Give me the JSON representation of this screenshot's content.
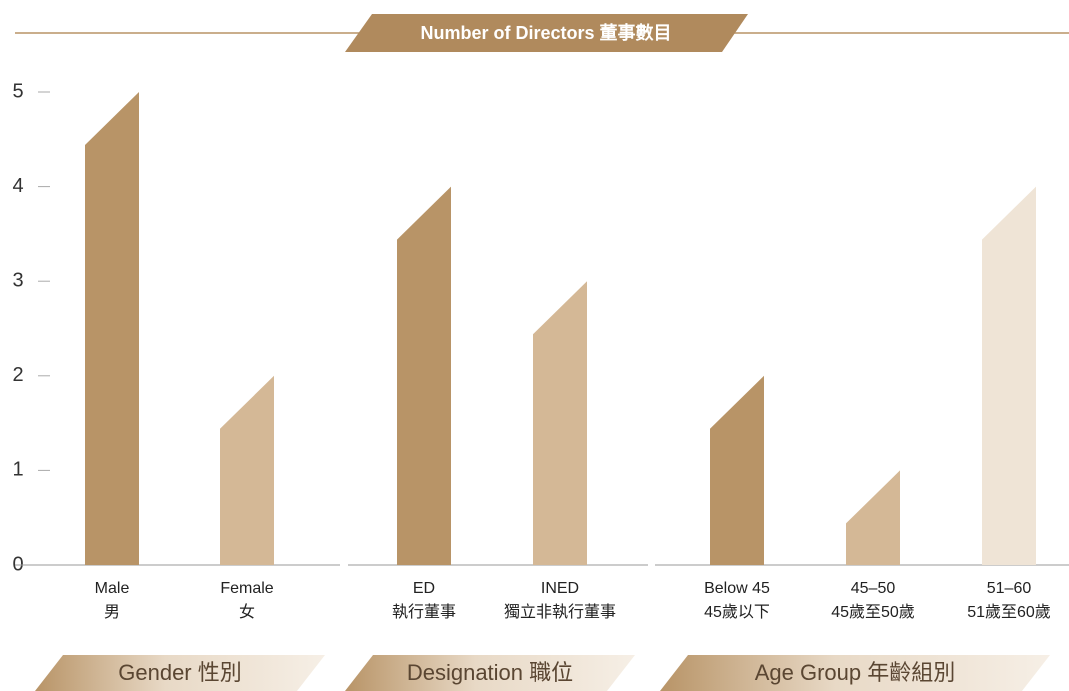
{
  "chart_data": {
    "type": "bar",
    "title": "Number of Directors 董事數目",
    "ylim": [
      0,
      5
    ],
    "yticks": [
      0,
      1,
      2,
      3,
      4,
      5
    ],
    "groups": [
      {
        "label": "Gender 性別",
        "categories": [
          [
            "Male",
            "男"
          ],
          [
            "Female",
            "女"
          ]
        ],
        "values": [
          5,
          2
        ],
        "colors": [
          "#b89467",
          "#d4b896"
        ]
      },
      {
        "label": "Designation 職位",
        "categories": [
          [
            "ED",
            "執行董事"
          ],
          [
            "INED",
            "獨立非執行董事"
          ]
        ],
        "values": [
          4,
          3
        ],
        "colors": [
          "#b89467",
          "#d4b896"
        ]
      },
      {
        "label": "Age Group 年齡組別",
        "categories": [
          [
            "Below 45",
            "45歲以下"
          ],
          [
            "45–50",
            "45歲至50歲"
          ],
          [
            "51–60",
            "51歲至60歲"
          ]
        ],
        "values": [
          2,
          1,
          4
        ],
        "colors": [
          "#b89467",
          "#d4b896",
          "#efe4d6"
        ]
      }
    ]
  }
}
